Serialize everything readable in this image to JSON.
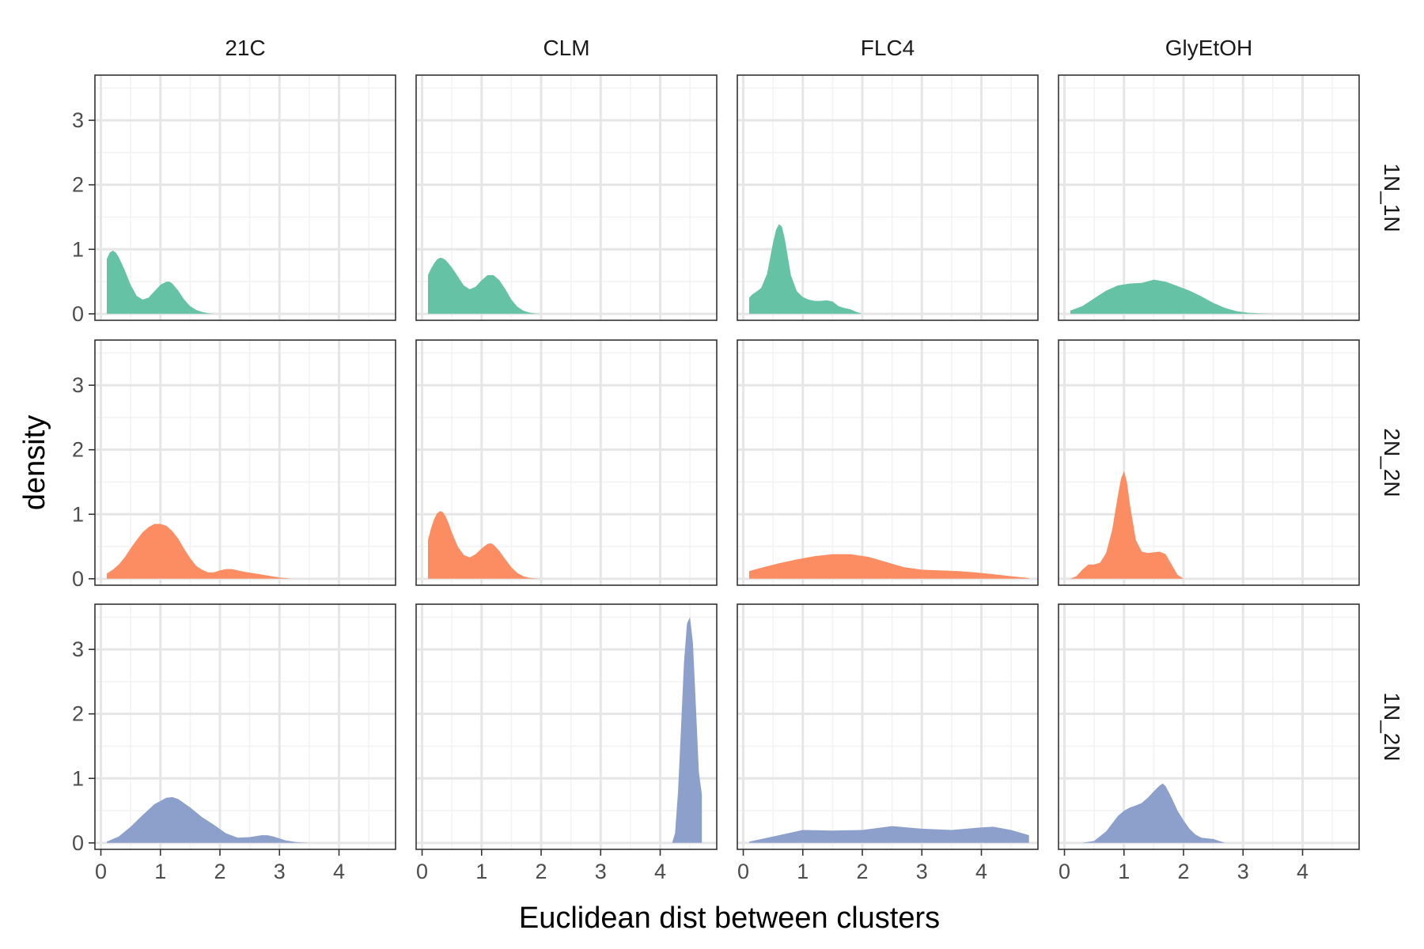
{
  "chart_data": {
    "type": "area",
    "subtype": "faceted density",
    "xlabel": "Euclidean dist between clusters",
    "ylabel": "density",
    "xlim": [
      -0.1,
      4.95
    ],
    "ylim": [
      -0.1,
      3.7
    ],
    "xticks": [
      0,
      1,
      2,
      3,
      4
    ],
    "yticks": [
      0,
      1,
      2,
      3
    ],
    "xtick_labels": [
      "0",
      "1",
      "2",
      "3",
      "4"
    ],
    "ytick_labels": [
      "0",
      "1",
      "2",
      "3"
    ],
    "grid": true,
    "legend": "none",
    "columns": [
      "21C",
      "CLM",
      "FLC4",
      "GlyEtOH"
    ],
    "rows": [
      {
        "label": "1N_1N",
        "color": "#66c2a5"
      },
      {
        "label": "2N_2N",
        "color": "#fc8d62"
      },
      {
        "label": "1N_2N",
        "color": "#8da0cb"
      }
    ],
    "panels": [
      {
        "row": "1N_1N",
        "col": "21C",
        "x": [
          0.1,
          0.15,
          0.2,
          0.25,
          0.3,
          0.4,
          0.5,
          0.6,
          0.7,
          0.8,
          0.9,
          1.0,
          1.1,
          1.15,
          1.2,
          1.3,
          1.4,
          1.5,
          1.6,
          1.7,
          1.8,
          1.9,
          2.0
        ],
        "y": [
          0.85,
          0.95,
          0.98,
          0.95,
          0.88,
          0.68,
          0.45,
          0.28,
          0.22,
          0.25,
          0.35,
          0.45,
          0.5,
          0.5,
          0.47,
          0.36,
          0.22,
          0.12,
          0.06,
          0.03,
          0.01,
          0.0,
          0.0
        ]
      },
      {
        "row": "1N_1N",
        "col": "CLM",
        "x": [
          0.1,
          0.15,
          0.2,
          0.25,
          0.3,
          0.35,
          0.4,
          0.5,
          0.6,
          0.7,
          0.8,
          0.9,
          1.0,
          1.1,
          1.2,
          1.3,
          1.4,
          1.5,
          1.6,
          1.7,
          1.8,
          1.9,
          2.0
        ],
        "y": [
          0.6,
          0.7,
          0.78,
          0.84,
          0.87,
          0.86,
          0.83,
          0.72,
          0.58,
          0.44,
          0.38,
          0.42,
          0.52,
          0.6,
          0.6,
          0.52,
          0.38,
          0.22,
          0.11,
          0.05,
          0.02,
          0.005,
          0.0
        ]
      },
      {
        "row": "1N_1N",
        "col": "FLC4",
        "x": [
          0.1,
          0.15,
          0.2,
          0.3,
          0.4,
          0.5,
          0.55,
          0.6,
          0.65,
          0.7,
          0.8,
          0.9,
          1.0,
          1.1,
          1.2,
          1.3,
          1.4,
          1.5,
          1.6,
          1.7,
          1.8,
          1.9,
          2.0
        ],
        "y": [
          0.25,
          0.3,
          0.33,
          0.4,
          0.62,
          1.1,
          1.3,
          1.39,
          1.35,
          1.15,
          0.6,
          0.35,
          0.26,
          0.22,
          0.2,
          0.2,
          0.21,
          0.19,
          0.12,
          0.09,
          0.07,
          0.03,
          0.0
        ]
      },
      {
        "row": "1N_1N",
        "col": "GlyEtOH",
        "x": [
          0.1,
          0.3,
          0.5,
          0.7,
          0.9,
          1.1,
          1.3,
          1.5,
          1.7,
          1.9,
          2.1,
          2.3,
          2.5,
          2.7,
          2.9,
          3.1,
          3.3,
          3.5,
          3.7
        ],
        "y": [
          0.05,
          0.12,
          0.24,
          0.36,
          0.44,
          0.47,
          0.48,
          0.53,
          0.5,
          0.43,
          0.36,
          0.27,
          0.17,
          0.09,
          0.04,
          0.015,
          0.005,
          0.0,
          0.0
        ]
      },
      {
        "row": "2N_2N",
        "col": "21C",
        "x": [
          0.1,
          0.2,
          0.3,
          0.4,
          0.5,
          0.6,
          0.7,
          0.8,
          0.9,
          1.0,
          1.1,
          1.2,
          1.3,
          1.4,
          1.5,
          1.6,
          1.7,
          1.8,
          1.9,
          2.0,
          2.1,
          2.2,
          2.3,
          2.4,
          2.6,
          2.8,
          3.0,
          3.2
        ],
        "y": [
          0.08,
          0.14,
          0.22,
          0.33,
          0.47,
          0.6,
          0.72,
          0.8,
          0.85,
          0.85,
          0.82,
          0.74,
          0.62,
          0.46,
          0.32,
          0.2,
          0.14,
          0.1,
          0.1,
          0.13,
          0.15,
          0.15,
          0.13,
          0.11,
          0.08,
          0.05,
          0.02,
          0.0
        ]
      },
      {
        "row": "2N_2N",
        "col": "CLM",
        "x": [
          0.1,
          0.15,
          0.2,
          0.25,
          0.3,
          0.35,
          0.4,
          0.45,
          0.5,
          0.6,
          0.7,
          0.8,
          0.9,
          1.0,
          1.1,
          1.15,
          1.2,
          1.3,
          1.4,
          1.5,
          1.6,
          1.7,
          1.8,
          1.9,
          2.0
        ],
        "y": [
          0.6,
          0.78,
          0.92,
          1.01,
          1.05,
          1.03,
          0.96,
          0.85,
          0.72,
          0.5,
          0.37,
          0.33,
          0.38,
          0.47,
          0.54,
          0.55,
          0.53,
          0.43,
          0.3,
          0.18,
          0.09,
          0.04,
          0.015,
          0.005,
          0.0
        ]
      },
      {
        "row": "2N_2N",
        "col": "FLC4",
        "x": [
          0.1,
          0.3,
          0.6,
          0.9,
          1.2,
          1.5,
          1.8,
          2.1,
          2.4,
          2.7,
          3.0,
          3.3,
          3.6,
          3.9,
          4.2,
          4.5,
          4.8
        ],
        "y": [
          0.12,
          0.17,
          0.24,
          0.3,
          0.35,
          0.38,
          0.38,
          0.34,
          0.26,
          0.18,
          0.14,
          0.13,
          0.12,
          0.1,
          0.07,
          0.04,
          0.01
        ]
      },
      {
        "row": "2N_2N",
        "col": "GlyEtOH",
        "x": [
          0.1,
          0.2,
          0.3,
          0.4,
          0.5,
          0.6,
          0.7,
          0.8,
          0.9,
          0.95,
          1.0,
          1.05,
          1.1,
          1.2,
          1.3,
          1.4,
          1.5,
          1.6,
          1.7,
          1.8,
          1.9,
          2.0
        ],
        "y": [
          0.0,
          0.04,
          0.14,
          0.22,
          0.22,
          0.25,
          0.4,
          0.75,
          1.3,
          1.55,
          1.67,
          1.5,
          1.15,
          0.6,
          0.42,
          0.4,
          0.41,
          0.42,
          0.38,
          0.22,
          0.06,
          0.0
        ]
      },
      {
        "row": "1N_2N",
        "col": "21C",
        "x": [
          0.1,
          0.3,
          0.5,
          0.7,
          0.9,
          1.1,
          1.2,
          1.3,
          1.5,
          1.7,
          1.9,
          2.1,
          2.3,
          2.5,
          2.7,
          2.8,
          2.9,
          3.1,
          3.3,
          3.5
        ],
        "y": [
          0.02,
          0.1,
          0.25,
          0.43,
          0.6,
          0.7,
          0.71,
          0.68,
          0.55,
          0.4,
          0.28,
          0.15,
          0.08,
          0.09,
          0.12,
          0.12,
          0.1,
          0.04,
          0.01,
          0.0
        ]
      },
      {
        "row": "1N_2N",
        "col": "CLM",
        "x": [
          4.2,
          4.25,
          4.3,
          4.35,
          4.4,
          4.45,
          4.5,
          4.55,
          4.6,
          4.65,
          4.7
        ],
        "y": [
          0.0,
          0.15,
          0.8,
          1.8,
          2.8,
          3.4,
          3.5,
          3.1,
          2.1,
          1.1,
          0.75
        ]
      },
      {
        "row": "1N_2N",
        "col": "FLC4",
        "x": [
          0.1,
          0.5,
          1.0,
          1.5,
          2.0,
          2.5,
          3.0,
          3.5,
          4.0,
          4.2,
          4.5,
          4.8
        ],
        "y": [
          0.02,
          0.1,
          0.2,
          0.19,
          0.2,
          0.26,
          0.22,
          0.2,
          0.24,
          0.25,
          0.2,
          0.12
        ]
      },
      {
        "row": "1N_2N",
        "col": "GlyEtOH",
        "x": [
          0.3,
          0.5,
          0.7,
          0.9,
          1.0,
          1.1,
          1.2,
          1.3,
          1.4,
          1.5,
          1.6,
          1.65,
          1.7,
          1.8,
          1.9,
          2.0,
          2.1,
          2.2,
          2.3,
          2.4,
          2.5,
          2.6,
          2.7
        ],
        "y": [
          0.0,
          0.03,
          0.18,
          0.42,
          0.5,
          0.55,
          0.58,
          0.62,
          0.7,
          0.8,
          0.89,
          0.92,
          0.88,
          0.7,
          0.5,
          0.35,
          0.22,
          0.13,
          0.08,
          0.07,
          0.06,
          0.03,
          0.0
        ]
      }
    ]
  }
}
